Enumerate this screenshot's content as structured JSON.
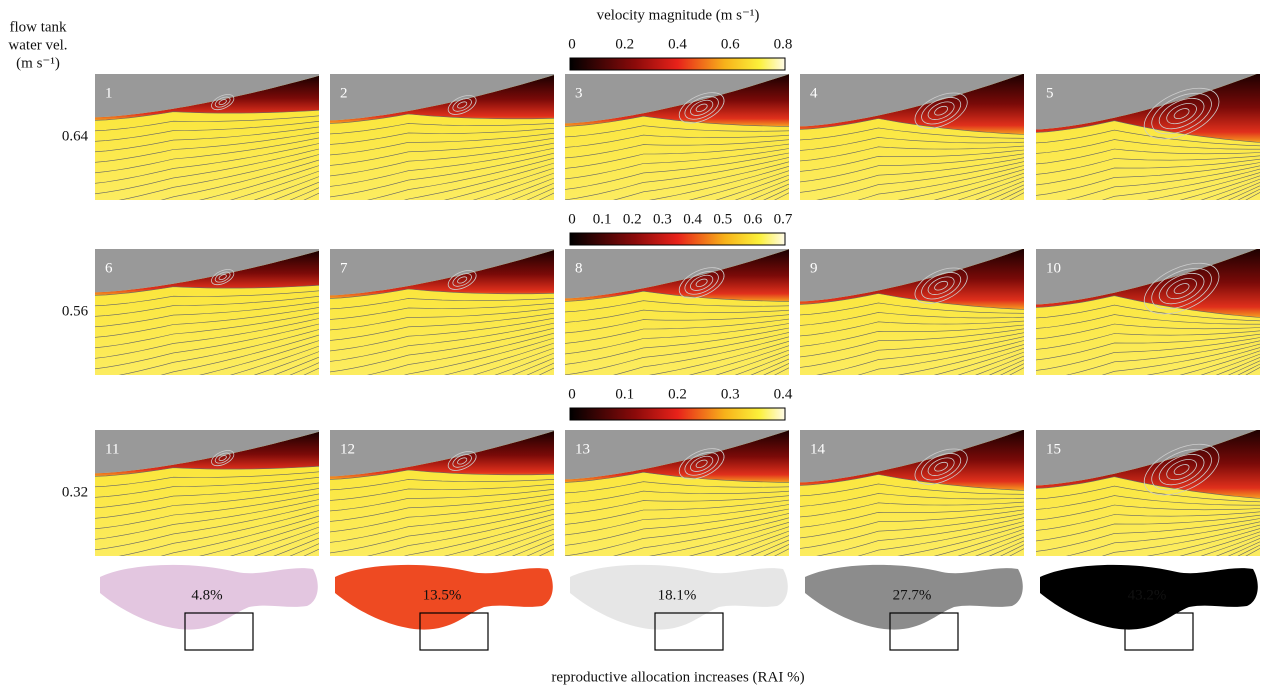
{
  "header": {
    "title": "velocity magnitude (m s⁻¹)",
    "left_label": [
      "flow tank",
      "water vel.",
      "(m s⁻¹)"
    ]
  },
  "rows": [
    {
      "label": "0.64",
      "colorbar": [
        "0",
        "0.2",
        "0.4",
        "0.6",
        "0.8"
      ],
      "panels": [
        "1",
        "2",
        "3",
        "4",
        "5"
      ]
    },
    {
      "label": "0.56",
      "colorbar": [
        "0",
        "0.1",
        "0.2",
        "0.3",
        "0.4",
        "0.5",
        "0.6",
        "0.7"
      ],
      "panels": [
        "6",
        "7",
        "8",
        "9",
        "10"
      ]
    },
    {
      "label": "0.32",
      "colorbar": [
        "0",
        "0.1",
        "0.2",
        "0.3",
        "0.4"
      ],
      "panels": [
        "11",
        "12",
        "13",
        "14",
        "15"
      ]
    }
  ],
  "fish": [
    {
      "label": "4.8%",
      "color": "#e3c6e0"
    },
    {
      "label": "13.5%",
      "color": "#ee4a22"
    },
    {
      "label": "18.1%",
      "color": "#e6e6e6"
    },
    {
      "label": "27.7%",
      "color": "#8c8c8c"
    },
    {
      "label": "43.2%",
      "color": "#000000"
    }
  ],
  "footer": {
    "caption": "reproductive allocation increases (RAI %)"
  }
}
